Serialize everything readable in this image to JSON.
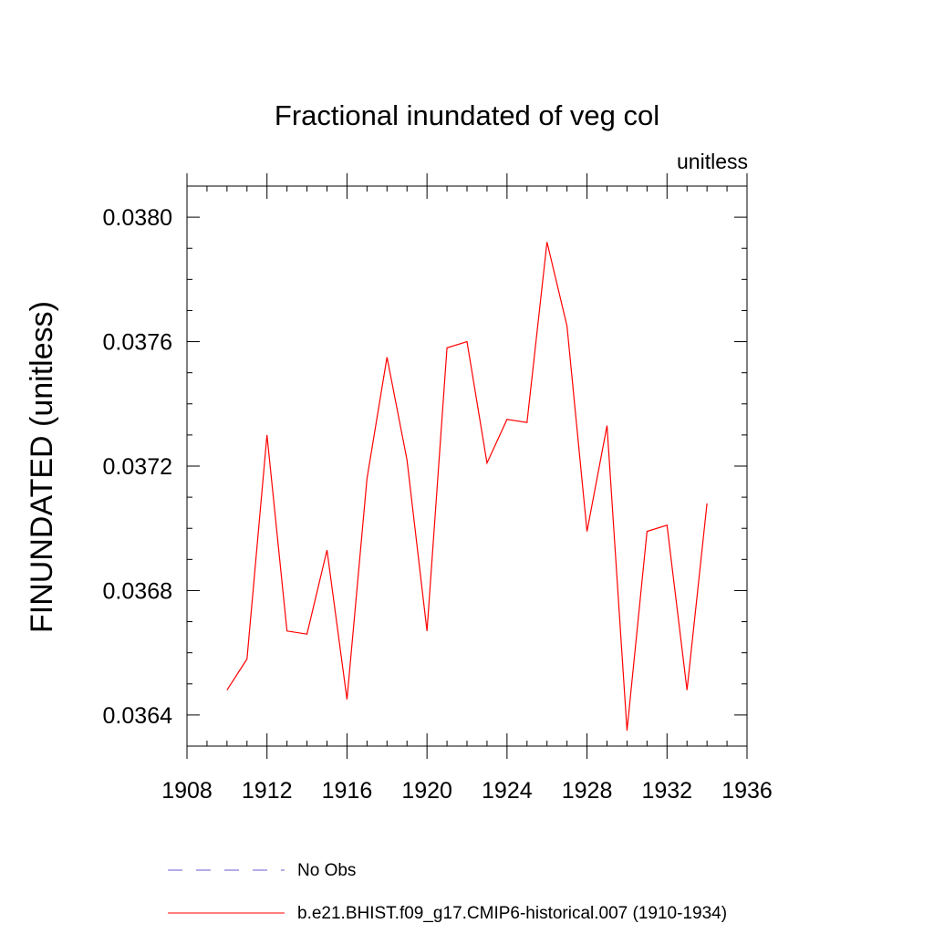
{
  "chart_data": {
    "type": "line",
    "title": "Fractional inundated of veg col",
    "units_label": "unitless",
    "ylabel": "FINUNDATED  (unitless)",
    "xlabel": "",
    "xlim": [
      1908,
      1936
    ],
    "ylim": [
      0.0363,
      0.0381
    ],
    "x_major_ticks": [
      1908,
      1912,
      1916,
      1920,
      1924,
      1928,
      1932,
      1936
    ],
    "x_tick_labels": [
      "1908",
      "1912",
      "1916",
      "1920",
      "1924",
      "1928",
      "1932",
      "1936"
    ],
    "y_major_ticks": [
      0.0364,
      0.0368,
      0.0372,
      0.0376,
      0.038
    ],
    "y_tick_labels": [
      "0.0364",
      "0.0368",
      "0.0372",
      "0.0376",
      "0.0380"
    ],
    "x_minor_step": 1,
    "y_minor_step": 0.0001,
    "series": [
      {
        "name": "b.e21.BHIST.f09_g17.CMIP6-historical.007 (1910-1934)",
        "color": "#ff0000",
        "style": "solid",
        "x": [
          1910,
          1911,
          1912,
          1913,
          1914,
          1915,
          1916,
          1917,
          1918,
          1919,
          1920,
          1921,
          1922,
          1923,
          1924,
          1925,
          1926,
          1927,
          1928,
          1929,
          1930,
          1931,
          1932,
          1933,
          1934
        ],
        "values": [
          0.03648,
          0.03658,
          0.0373,
          0.03667,
          0.03666,
          0.03693,
          0.03645,
          0.03716,
          0.03755,
          0.03722,
          0.03667,
          0.03758,
          0.0376,
          0.03721,
          0.03735,
          0.03734,
          0.03792,
          0.03765,
          0.03699,
          0.03733,
          0.03635,
          0.03699,
          0.03701,
          0.03648,
          0.03708
        ]
      }
    ],
    "legend": [
      {
        "label": "No Obs",
        "color": "#6a5acd",
        "style": "dashed"
      },
      {
        "label": "b.e21.BHIST.f09_g17.CMIP6-historical.007 (1910-1934)",
        "color": "#ff0000",
        "style": "solid"
      }
    ]
  }
}
